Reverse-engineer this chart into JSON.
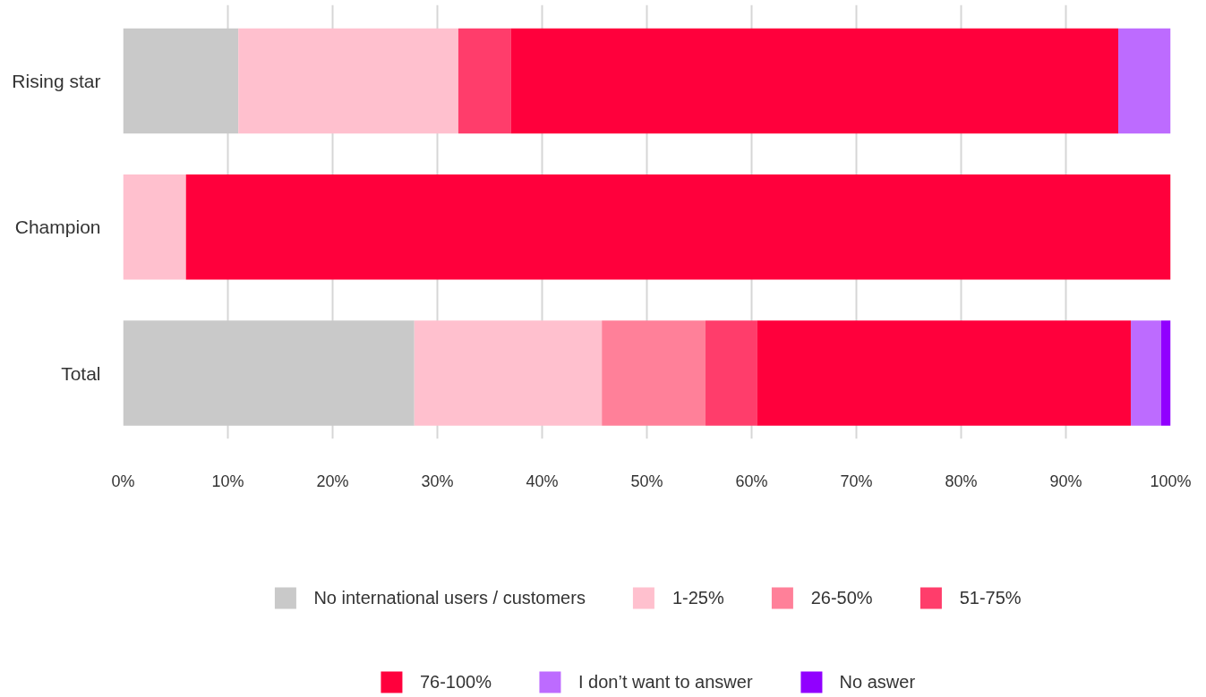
{
  "chart_data": {
    "type": "bar",
    "orientation": "horizontal",
    "stacked": true,
    "categories": [
      "Rising star",
      "Champion",
      "Total"
    ],
    "series": [
      {
        "name": "No international users / customers",
        "color": "#c9c9c9",
        "values": [
          11,
          0,
          27.8
        ]
      },
      {
        "name": "1-25%",
        "color": "#ffc0ce",
        "values": [
          21,
          6,
          17.9
        ]
      },
      {
        "name": "26-50%",
        "color": "#ff8099",
        "values": [
          0,
          0,
          9.9
        ]
      },
      {
        "name": "51-75%",
        "color": "#ff3d6b",
        "values": [
          5,
          0,
          4.9
        ]
      },
      {
        "name": "76-100%",
        "color": "#ff003c",
        "values": [
          58,
          94,
          35.7
        ]
      },
      {
        "name": "I don’t want to answer",
        "color": "#bd6bff",
        "values": [
          5,
          0,
          2.9
        ]
      },
      {
        "name": "No aswer",
        "color": "#9100ff",
        "values": [
          0,
          0,
          0.9
        ]
      }
    ],
    "xlim": [
      0,
      100
    ],
    "xticks": [
      {
        "value": 0,
        "label": "0%"
      },
      {
        "value": 10,
        "label": "10%"
      },
      {
        "value": 20,
        "label": "20%"
      },
      {
        "value": 30,
        "label": "30%"
      },
      {
        "value": 40,
        "label": "40%"
      },
      {
        "value": 50,
        "label": "50%"
      },
      {
        "value": 60,
        "label": "60%"
      },
      {
        "value": 70,
        "label": "70%"
      },
      {
        "value": 80,
        "label": "80%"
      },
      {
        "value": 90,
        "label": "90%"
      },
      {
        "value": 100,
        "label": "100%"
      }
    ],
    "grid": "x",
    "legend": "bottom"
  }
}
